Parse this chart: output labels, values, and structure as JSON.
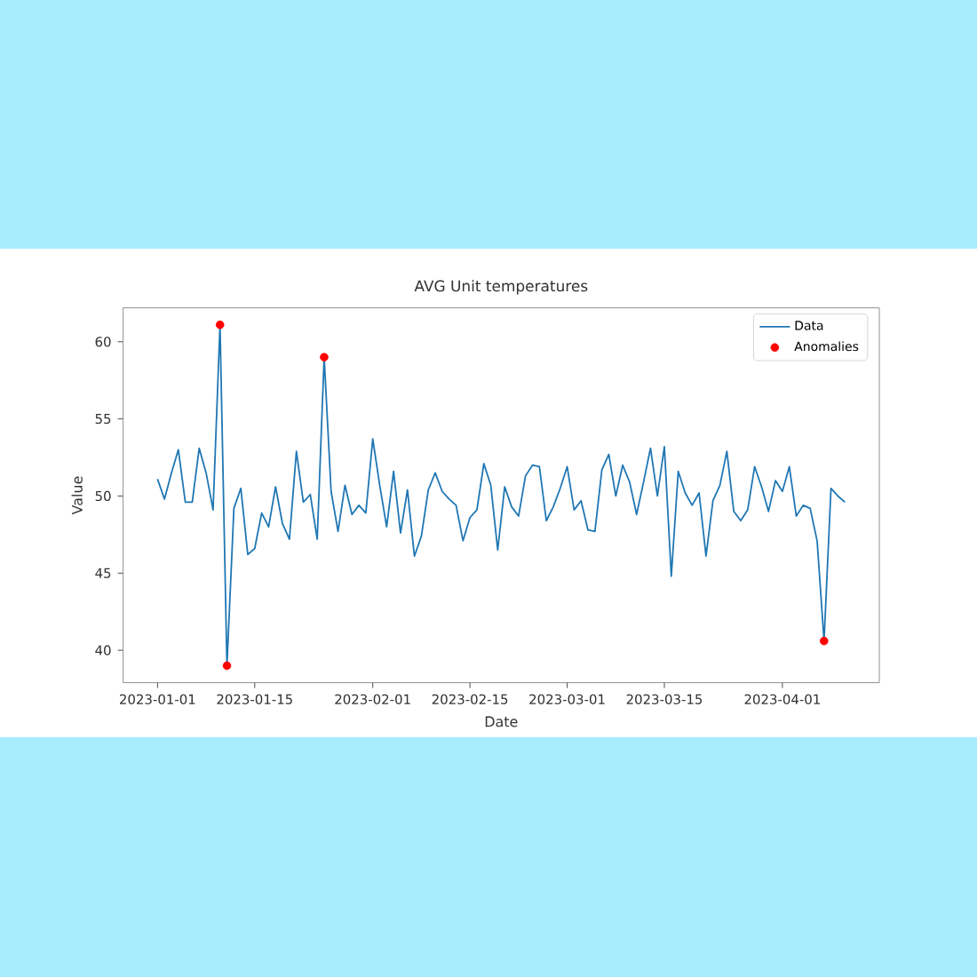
{
  "chart_data": {
    "type": "line",
    "title": "AVG Unit temperatures",
    "xlabel": "Date",
    "ylabel": "Value",
    "x": [
      "2023-01-01",
      "2023-01-02",
      "2023-01-03",
      "2023-01-04",
      "2023-01-05",
      "2023-01-06",
      "2023-01-07",
      "2023-01-08",
      "2023-01-09",
      "2023-01-10",
      "2023-01-11",
      "2023-01-12",
      "2023-01-13",
      "2023-01-14",
      "2023-01-15",
      "2023-01-16",
      "2023-01-17",
      "2023-01-18",
      "2023-01-19",
      "2023-01-20",
      "2023-01-21",
      "2023-01-22",
      "2023-01-23",
      "2023-01-24",
      "2023-01-25",
      "2023-01-26",
      "2023-01-27",
      "2023-01-28",
      "2023-01-29",
      "2023-01-30",
      "2023-01-31",
      "2023-02-01",
      "2023-02-02",
      "2023-02-03",
      "2023-02-04",
      "2023-02-05",
      "2023-02-06",
      "2023-02-07",
      "2023-02-08",
      "2023-02-09",
      "2023-02-10",
      "2023-02-11",
      "2023-02-12",
      "2023-02-13",
      "2023-02-14",
      "2023-02-15",
      "2023-02-16",
      "2023-02-17",
      "2023-02-18",
      "2023-02-19",
      "2023-02-20",
      "2023-02-21",
      "2023-02-22",
      "2023-02-23",
      "2023-02-24",
      "2023-02-25",
      "2023-02-26",
      "2023-02-27",
      "2023-02-28",
      "2023-03-01",
      "2023-03-02",
      "2023-03-03",
      "2023-03-04",
      "2023-03-05",
      "2023-03-06",
      "2023-03-07",
      "2023-03-08",
      "2023-03-09",
      "2023-03-10",
      "2023-03-11",
      "2023-03-12",
      "2023-03-13",
      "2023-03-14",
      "2023-03-15",
      "2023-03-16",
      "2023-03-17",
      "2023-03-18",
      "2023-03-19",
      "2023-03-20",
      "2023-03-21",
      "2023-03-22",
      "2023-03-23",
      "2023-03-24",
      "2023-03-25",
      "2023-03-26",
      "2023-03-27",
      "2023-03-28",
      "2023-03-29",
      "2023-03-30",
      "2023-03-31",
      "2023-04-01",
      "2023-04-02",
      "2023-04-03",
      "2023-04-04",
      "2023-04-05",
      "2023-04-06",
      "2023-04-07",
      "2023-04-08",
      "2023-04-09",
      "2023-04-10"
    ],
    "series": [
      {
        "name": "Data",
        "color": "#1f77b4",
        "values": [
          51.1,
          49.8,
          51.5,
          53.0,
          49.6,
          49.6,
          53.1,
          51.5,
          49.1,
          61.1,
          39.0,
          49.2,
          50.5,
          46.2,
          46.6,
          48.9,
          48.0,
          50.6,
          48.2,
          47.2,
          52.9,
          49.6,
          50.1,
          47.2,
          59.0,
          50.3,
          47.7,
          50.7,
          48.8,
          49.4,
          48.9,
          53.7,
          50.7,
          48.0,
          51.6,
          47.6,
          50.4,
          46.1,
          47.4,
          50.4,
          51.5,
          50.3,
          49.8,
          49.4,
          47.1,
          48.6,
          49.1,
          52.1,
          50.7,
          46.5,
          50.6,
          49.3,
          48.7,
          51.3,
          52.0,
          51.9,
          48.4,
          49.3,
          50.5,
          51.9,
          49.1,
          49.7,
          47.8,
          47.7,
          51.7,
          52.7,
          50.0,
          52.0,
          50.9,
          48.8,
          50.9,
          53.1,
          50.0,
          53.2,
          44.8,
          51.6,
          50.2,
          49.4,
          50.2,
          46.1,
          49.7,
          50.7,
          52.9,
          49.0,
          48.4,
          49.1,
          51.9,
          50.6,
          49.0,
          51.0,
          50.3,
          51.9,
          48.7,
          49.4,
          49.2,
          47.1,
          40.6,
          50.5,
          50.0,
          49.6
        ]
      },
      {
        "name": "Anomalies",
        "type": "scatter",
        "color": "#ff0000",
        "x": [
          "2023-01-10",
          "2023-01-11",
          "2023-01-25",
          "2023-04-07"
        ],
        "values": [
          61.1,
          39.0,
          59.0,
          40.6
        ]
      }
    ],
    "xlim": [
      "2022-12-27T01:00",
      "2023-04-14T23:00"
    ],
    "xticks": [
      "2023-01-01",
      "2023-01-15",
      "2023-02-01",
      "2023-02-15",
      "2023-03-01",
      "2023-03-15",
      "2023-04-01"
    ],
    "ylim": [
      37.9,
      62.2
    ],
    "yticks": [
      40,
      45,
      50,
      55,
      60
    ],
    "legend": "top right"
  }
}
